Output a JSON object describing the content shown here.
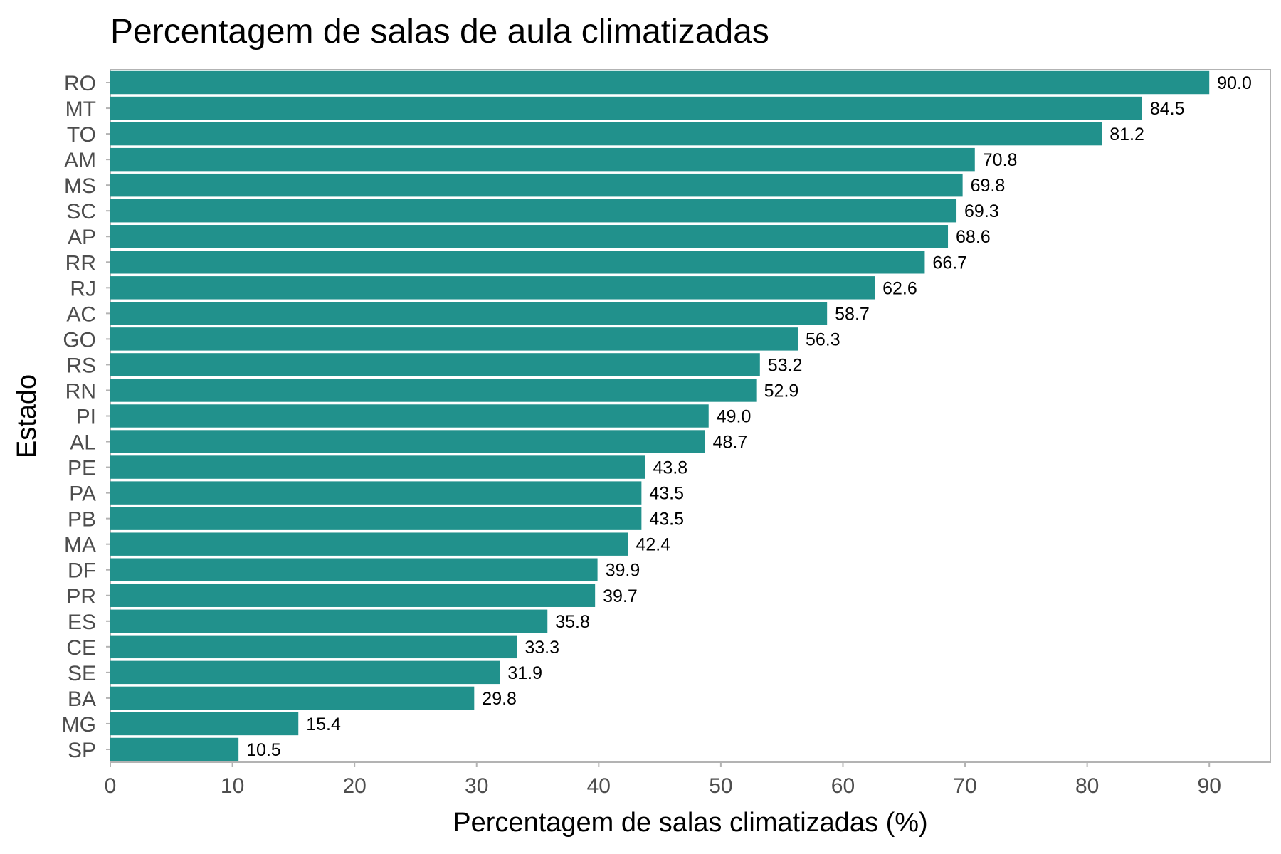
{
  "chart_data": {
    "type": "bar",
    "orientation": "horizontal",
    "title": "Percentagem de salas de aula climatizadas",
    "xlabel": "Percentagem de salas climatizadas (%)",
    "ylabel": "Estado",
    "xlim": [
      0,
      95
    ],
    "xticks": [
      0,
      10,
      20,
      30,
      40,
      50,
      60,
      70,
      80,
      90
    ],
    "grid": false,
    "bar_color": "#21918c",
    "categories": [
      "RO",
      "MT",
      "TO",
      "AM",
      "MS",
      "SC",
      "AP",
      "RR",
      "RJ",
      "AC",
      "GO",
      "RS",
      "RN",
      "PI",
      "AL",
      "PE",
      "PA",
      "PB",
      "MA",
      "DF",
      "PR",
      "ES",
      "CE",
      "SE",
      "BA",
      "MG",
      "SP"
    ],
    "values": [
      90.0,
      84.5,
      81.2,
      70.8,
      69.8,
      69.3,
      68.6,
      66.7,
      62.6,
      58.7,
      56.3,
      53.2,
      52.9,
      49.0,
      48.7,
      43.8,
      43.5,
      43.5,
      42.4,
      39.9,
      39.7,
      35.8,
      33.3,
      31.9,
      29.8,
      15.4,
      10.5
    ],
    "value_labels": [
      "90.0",
      "84.5",
      "81.2",
      "70.8",
      "69.8",
      "69.3",
      "68.6",
      "66.7",
      "62.6",
      "58.7",
      "56.3",
      "53.2",
      "52.9",
      "49.0",
      "48.7",
      "43.8",
      "43.5",
      "43.5",
      "42.4",
      "39.9",
      "39.7",
      "35.8",
      "33.3",
      "31.9",
      "29.8",
      "15.4",
      "10.5"
    ]
  }
}
